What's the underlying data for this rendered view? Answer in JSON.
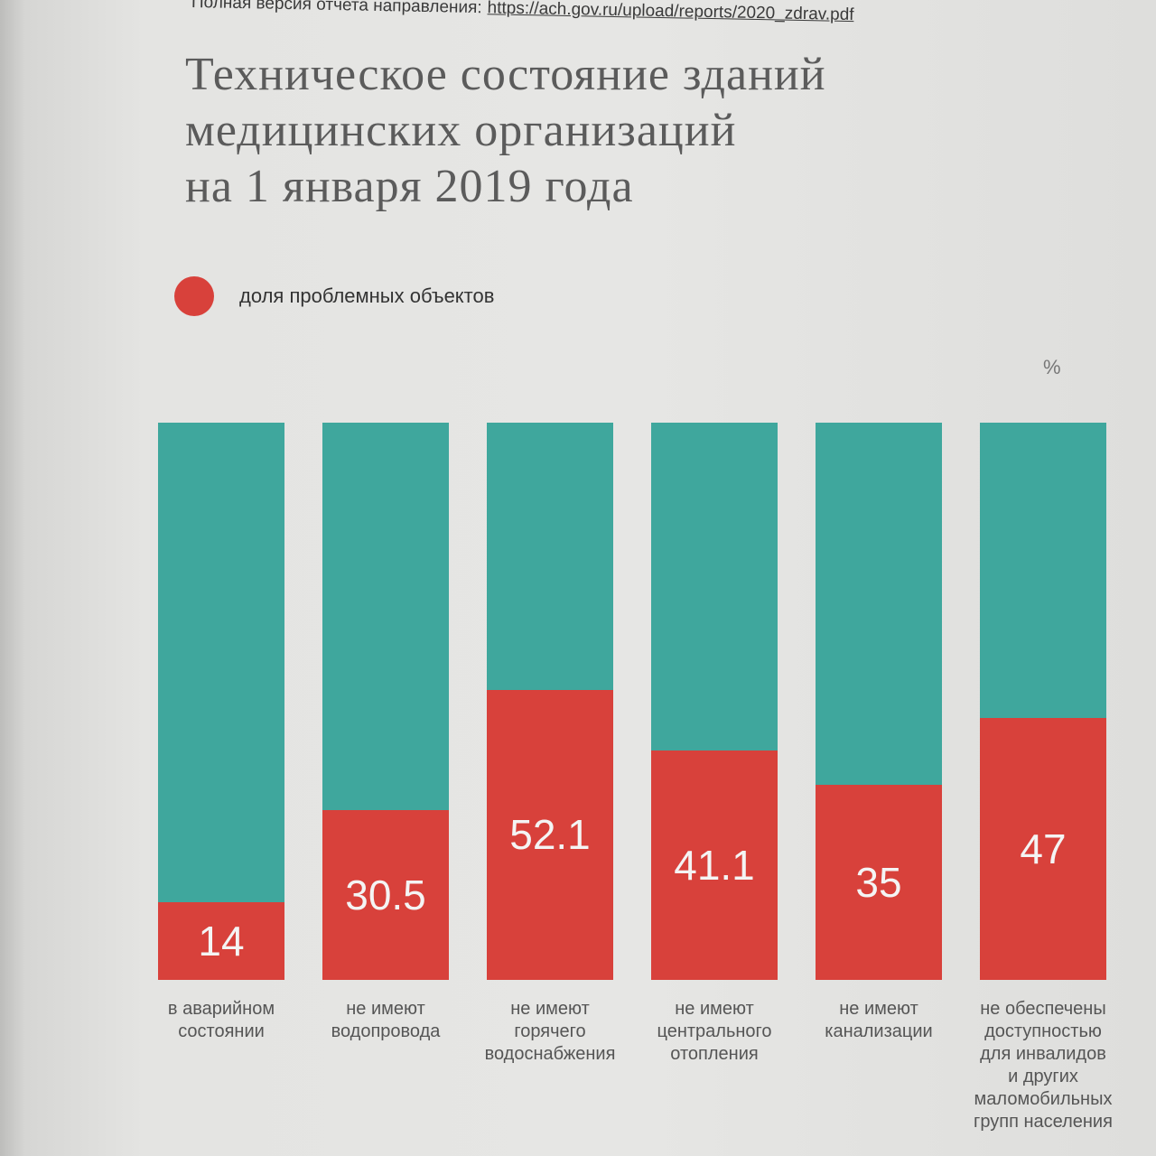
{
  "page": {
    "source_prefix": "Полная версия отчета направления:",
    "source_link": "https://ach.gov.ru/upload/reports/2020_zdrav.pdf"
  },
  "chart_data": {
    "type": "bar",
    "stacked": true,
    "title": "Техническое состояние зданий\nмедицинских организаций\nна 1 января 2019 года",
    "unit": "%",
    "categories": [
      "в аварийном\nсостоянии",
      "не имеют\nводопровода",
      "не имеют\nгорячего\nводоснабжения",
      "не имеют\nцентрального\nотопления",
      "не имеют\nканализации",
      "не обеспечены\nдоступностью\nдля инвалидов\nи других\nмаломобильных\nгрупп населения"
    ],
    "series": [
      {
        "name": "доля проблемных объектов",
        "values": [
          14,
          30.5,
          52.1,
          41.1,
          35,
          47
        ],
        "color": "#d8413b"
      }
    ],
    "remainder_color": "#3fa79d",
    "ylim": [
      0,
      100
    ],
    "grid": false,
    "legend_position": "top-left",
    "data_labels": true
  }
}
